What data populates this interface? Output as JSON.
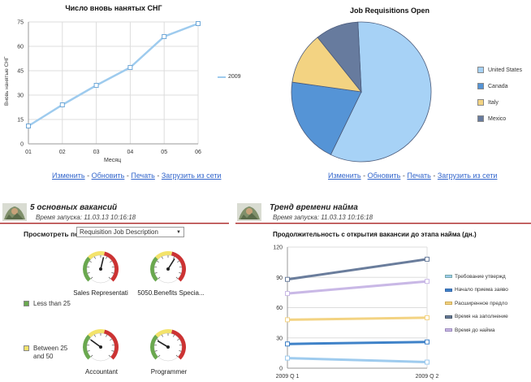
{
  "chart_data": [
    {
      "type": "line",
      "title": "Число вновь нанятых СНГ",
      "xlabel": "Месяц",
      "ylabel": "Вновь нанятые СНГ",
      "categories": [
        "01",
        "02",
        "03",
        "04",
        "05",
        "06"
      ],
      "series": [
        {
          "name": "2009",
          "values": [
            11,
            24,
            36,
            47,
            66,
            74
          ]
        }
      ],
      "ylim": [
        0,
        75
      ],
      "yticks": [
        "0",
        "15",
        "30",
        "45",
        "60",
        "75"
      ],
      "grid": true,
      "legend": "right",
      "color": "#9ecbee"
    },
    {
      "type": "pie",
      "title": "Job Requisitions Open",
      "labels": [
        "United States",
        "Canada",
        "Italy",
        "Mexico"
      ],
      "values": [
        58,
        20,
        12,
        10
      ],
      "colors": [
        "#a7d2f6",
        "#5594d6",
        "#f3d382",
        "#677b9e"
      ],
      "legend": "right"
    },
    {
      "type": "line",
      "title": "Продолжительность с открытия вакансии до этапа найма (дн.)",
      "categories": [
        "2009 Q 1",
        "2009 Q 2"
      ],
      "series": [
        {
          "name": "Требование утвержд",
          "values": [
            10,
            6
          ],
          "color": "#9ecbee"
        },
        {
          "name": "Начало приема заяво",
          "values": [
            24,
            26
          ],
          "color": "#3f82c8"
        },
        {
          "name": "Расширенное предло",
          "values": [
            48,
            50
          ],
          "color": "#f3d382"
        },
        {
          "name": "Время на заполнение",
          "values": [
            88,
            108
          ],
          "color": "#6a7d9c"
        },
        {
          "name": "Время до найма",
          "values": [
            74,
            86
          ],
          "color": "#c9b8e6"
        }
      ],
      "ylim": [
        0,
        120
      ],
      "yticks": [
        "0",
        "30",
        "60",
        "90",
        "120"
      ],
      "grid": true,
      "legend": "right"
    }
  ],
  "links": [
    "Изменить",
    "Обновить",
    "Печать",
    "Загрузить из сети"
  ],
  "left_section": {
    "title": "5 основных вакансий",
    "subtitle": "Время запуска: 11.03.13 10:16:18",
    "view_by_label": "Просмотреть по",
    "view_by_value": "Requisition Job Description",
    "gauges": [
      {
        "label": "Sales Representati",
        "value": 0.55
      },
      {
        "label": "5050.Benefits Specia...",
        "value": 0.62
      },
      {
        "label": "Accountant",
        "value": 0.3
      },
      {
        "label": "Programmer",
        "value": 0.28
      }
    ],
    "gauge_legend": [
      {
        "label": "Less than 25",
        "color": "#6aa84f"
      },
      {
        "label": "Between 25 and 50",
        "color": "#f3e36b"
      }
    ]
  },
  "right_section": {
    "title": "Тренд времени найма",
    "subtitle": "Время запуска: 11.03.13 10:16:18"
  }
}
